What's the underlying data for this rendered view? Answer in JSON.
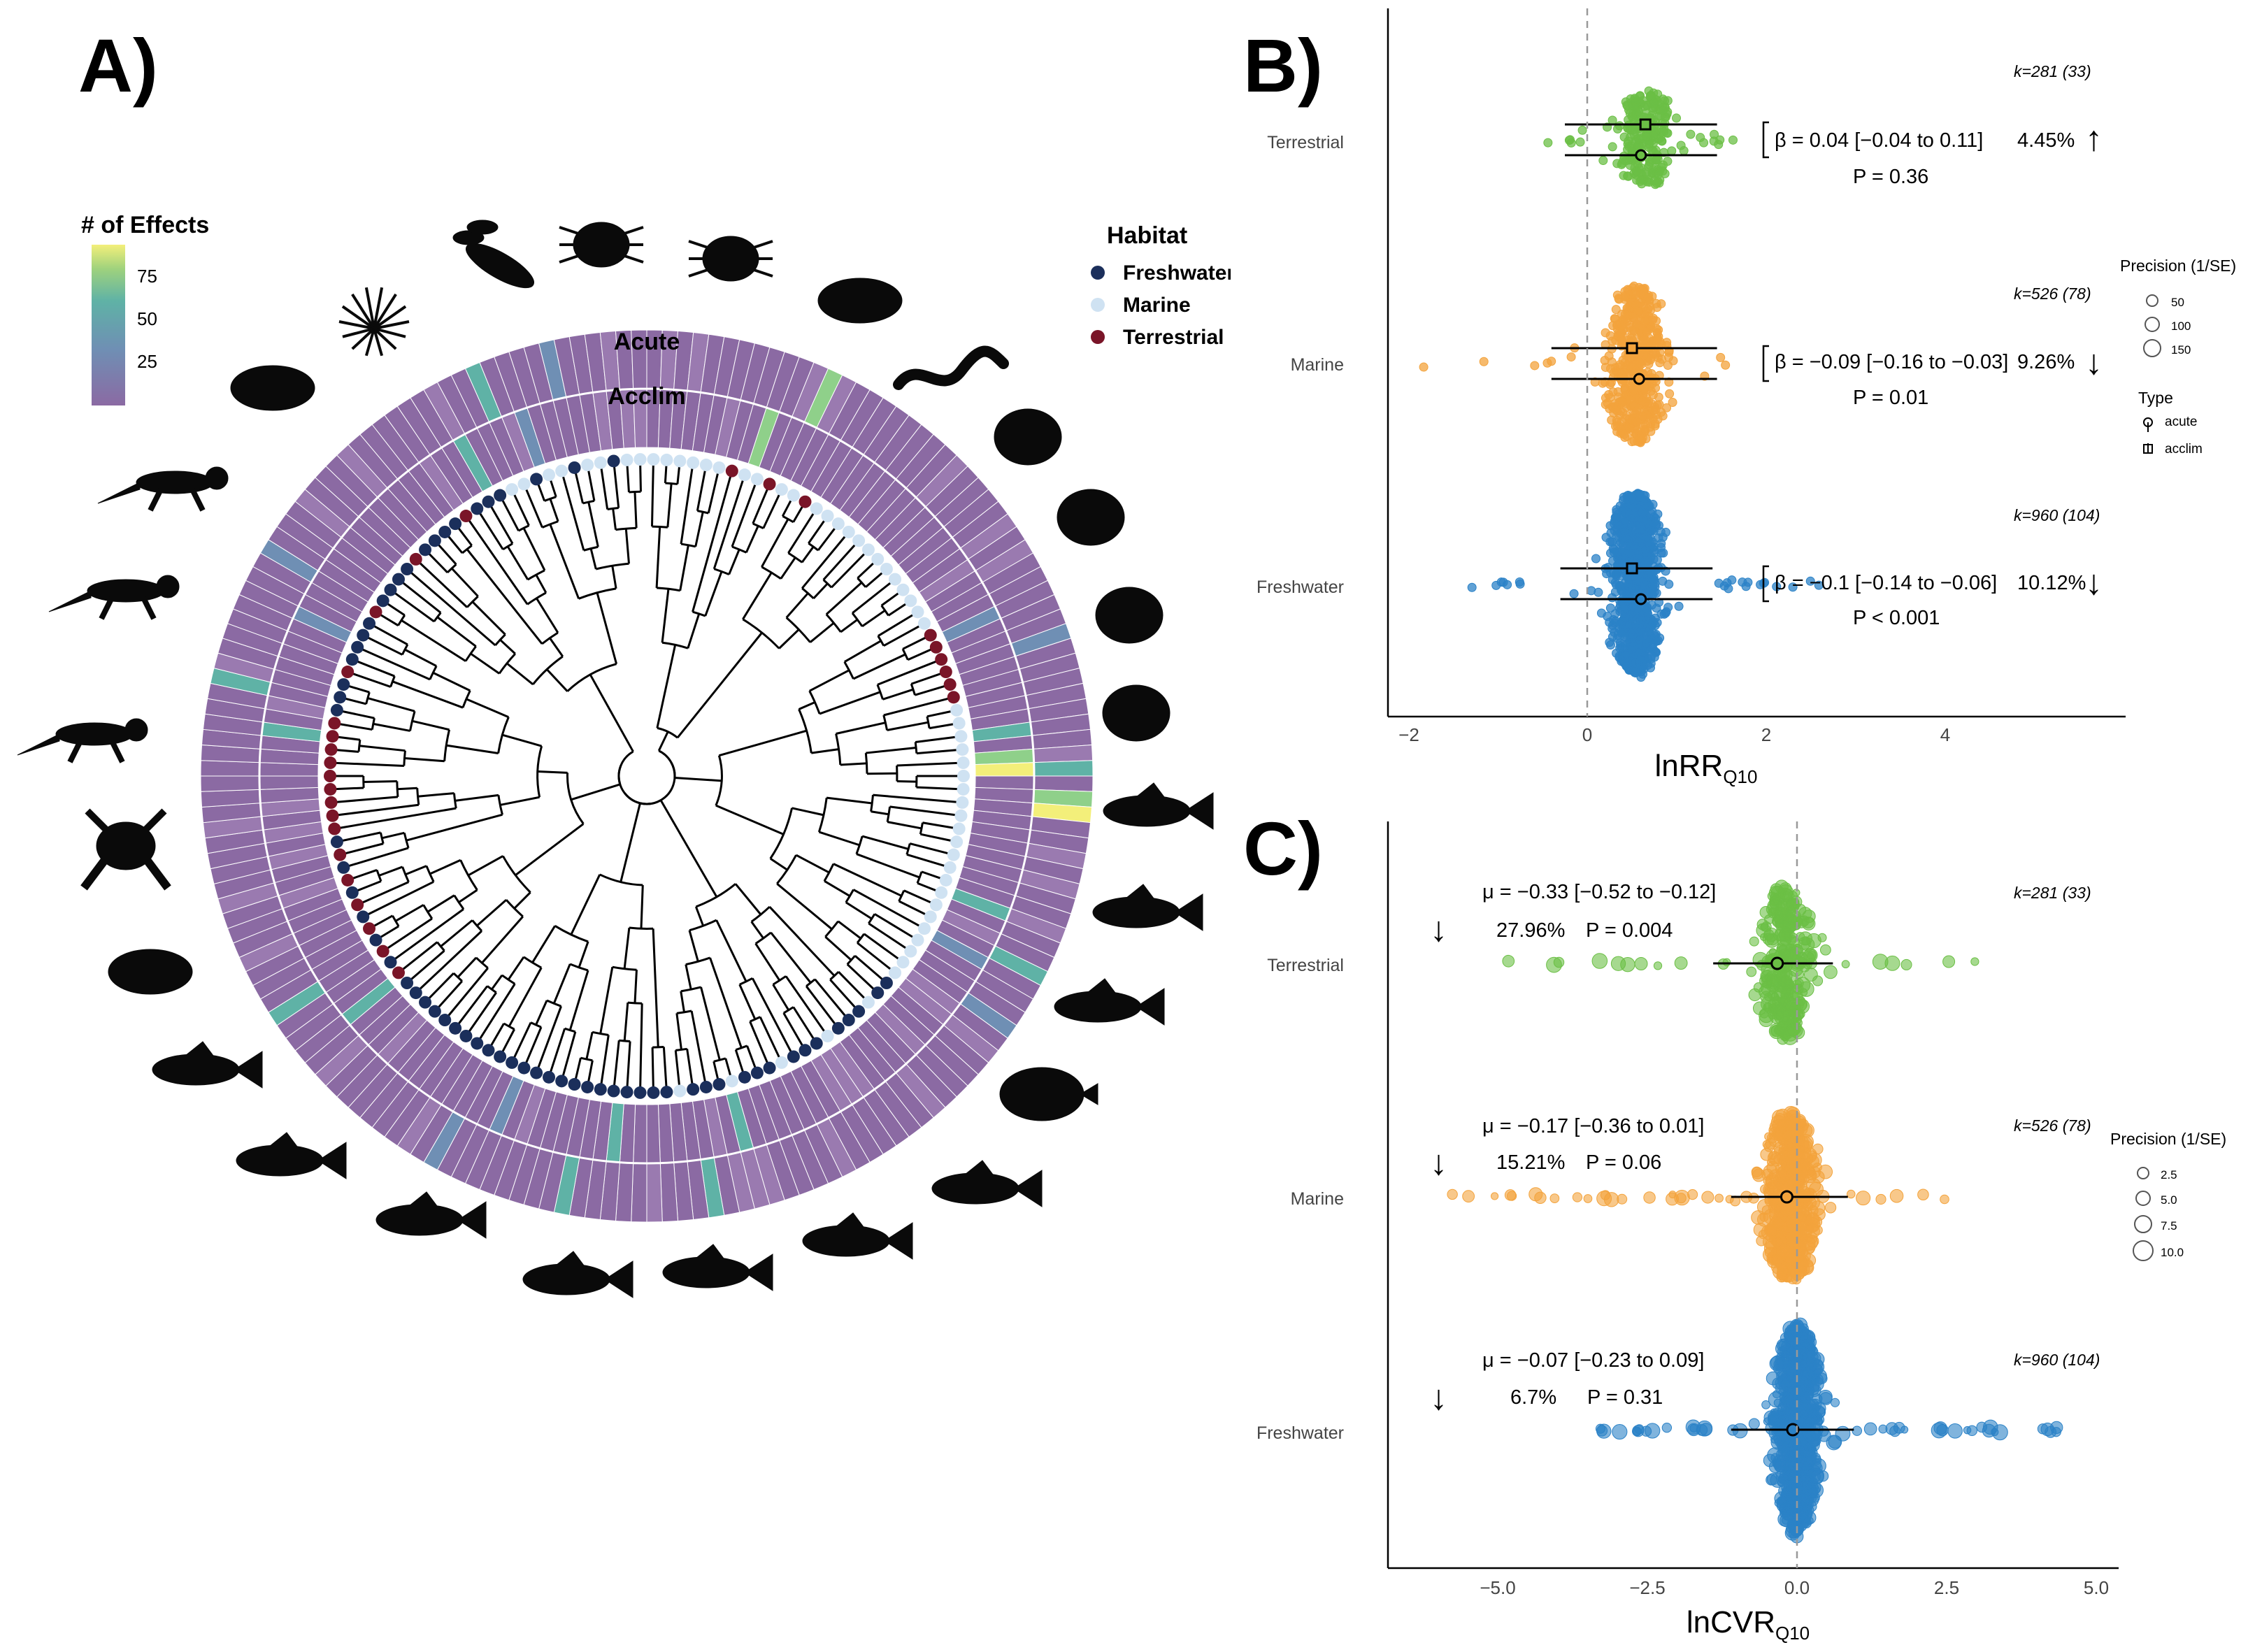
{
  "panels": {
    "a": "A)",
    "b": "B)",
    "c": "C)"
  },
  "panel_a": {
    "ring_labels": {
      "outer": "Acute",
      "inner": "Acclim"
    },
    "color_legend": {
      "title": "# of Effects",
      "ticks": [
        "75",
        "50",
        "25"
      ]
    },
    "habitat_legend": {
      "title": "Habitat",
      "items": [
        {
          "label": "Freshwater",
          "color": "#1b2f5b"
        },
        {
          "label": "Marine",
          "color": "#cfe2f2"
        },
        {
          "label": "Terrestrial",
          "color": "#7a1528"
        }
      ]
    },
    "colors": {
      "ring_base": "#8b6aa3",
      "ring_low": "#9a7ab0",
      "ring_mid": "#6f8fb4",
      "ring_teal": "#5fb2a6",
      "ring_green": "#8fd08a",
      "ring_yellow": "#f3ef7a"
    },
    "silhouettes": [
      "turtle-icon",
      "sea-urchin-icon",
      "lobster-icon",
      "isopod-icon",
      "beetle-icon",
      "water-flea-icon",
      "worm-icon",
      "scallop-icon",
      "clam-icon",
      "snail-icon",
      "oyster-icon",
      "fish-icon",
      "fish-icon",
      "guppy-icon",
      "flounder-icon",
      "sculpin-icon",
      "perch-icon",
      "catfish-icon",
      "salmon-icon",
      "minnow-icon",
      "carp-icon",
      "sturgeon-icon",
      "toad-icon",
      "frog-icon",
      "salamander-icon",
      "lizard-icon",
      "gecko-icon"
    ]
  },
  "panel_b": {
    "x_ticks": [
      "−2",
      "0",
      "2",
      "4"
    ],
    "x_label_main": "lnRR",
    "x_label_sub": "Q10",
    "size_legend": {
      "title": "Precision (1/SE)",
      "items": [
        "50",
        "100",
        "150"
      ]
    },
    "type_legend": {
      "title": "Type",
      "items": [
        "acute",
        "acclim"
      ]
    },
    "rows": [
      {
        "name": "Terrestrial",
        "k": "k=281 (33)",
        "beta": "β = 0.04 [−0.04 to 0.11]",
        "p": "P = 0.36",
        "pct": "4.45%",
        "arrow": "↑",
        "color": "#6bbf45"
      },
      {
        "name": "Marine",
        "k": "k=526 (78)",
        "beta": "β = −0.09 [−0.16 to −0.03]",
        "p": "P = 0.01",
        "pct": "9.26%",
        "arrow": "↓",
        "color": "#f3a33c"
      },
      {
        "name": "Freshwater",
        "k": "k=960 (104)",
        "beta": "β = −0.1 [−0.14 to −0.06]",
        "p": "P < 0.001",
        "pct": "10.12%",
        "arrow": "↓",
        "color": "#2b82c7"
      }
    ]
  },
  "panel_c": {
    "x_ticks": [
      "−5.0",
      "−2.5",
      "0.0",
      "2.5",
      "5.0"
    ],
    "x_label_main": "lnCVR",
    "x_label_sub": "Q10",
    "size_legend": {
      "title": "Precision (1/SE)",
      "items": [
        "2.5",
        "5.0",
        "7.5",
        "10.0"
      ]
    },
    "rows": [
      {
        "name": "Terrestrial",
        "k": "k=281 (33)",
        "mu": "μ = −0.33 [−0.52 to −0.12]",
        "pct": "27.96%",
        "p": "P = 0.004",
        "arrow": "↓",
        "color": "#6bbf45"
      },
      {
        "name": "Marine",
        "k": "k=526 (78)",
        "mu": "μ = −0.17 [−0.36 to 0.01]",
        "pct": "15.21%",
        "p": "P = 0.06",
        "arrow": "↓",
        "color": "#f3a33c"
      },
      {
        "name": "Freshwater",
        "k": "k=960 (104)",
        "mu": "μ = −0.07 [−0.23 to 0.09]",
        "pct": "6.7%",
        "p": "P = 0.31",
        "arrow": "↓",
        "color": "#2b82c7"
      }
    ]
  },
  "chart_data": [
    {
      "type": "scatter",
      "xlabel": "lnRR Q10",
      "categories": [
        "Terrestrial",
        "Marine",
        "Freshwater"
      ],
      "xlim": [
        -2,
        5.8
      ],
      "grid": false,
      "reference_line_x": 0,
      "series": [
        {
          "name": "acclim",
          "estimates": [
            0.65,
            0.5,
            0.5
          ],
          "ci_low": [
            -0.25,
            -0.4,
            -0.3
          ],
          "ci_high": [
            1.45,
            1.3,
            1.3
          ]
        },
        {
          "name": "acute",
          "estimates": [
            0.6,
            0.58,
            0.6
          ],
          "ci_low": [
            -0.25,
            -0.3,
            -0.2
          ],
          "ci_high": [
            1.45,
            1.45,
            1.4
          ]
        }
      ],
      "spread": {
        "Terrestrial": [
          -0.5,
          1.8
        ],
        "Marine": [
          -2,
          2.5
        ],
        "Freshwater": [
          -1.3,
          2.6
        ]
      }
    },
    {
      "type": "scatter",
      "xlabel": "lnCVR Q10",
      "categories": [
        "Terrestrial",
        "Marine",
        "Freshwater"
      ],
      "xlim": [
        -6.8,
        5.3
      ],
      "grid": false,
      "reference_line_x": 0,
      "estimates": [
        -0.33,
        -0.17,
        -0.07
      ],
      "ci_low": [
        -1.4,
        -1.1,
        -1.1
      ],
      "ci_high": [
        0.6,
        0.85,
        0.95
      ],
      "spread": {
        "Terrestrial": [
          -5.3,
          3.1
        ],
        "Marine": [
          -6.3,
          3.1
        ],
        "Freshwater": [
          -3.6,
          4.4
        ]
      }
    }
  ]
}
